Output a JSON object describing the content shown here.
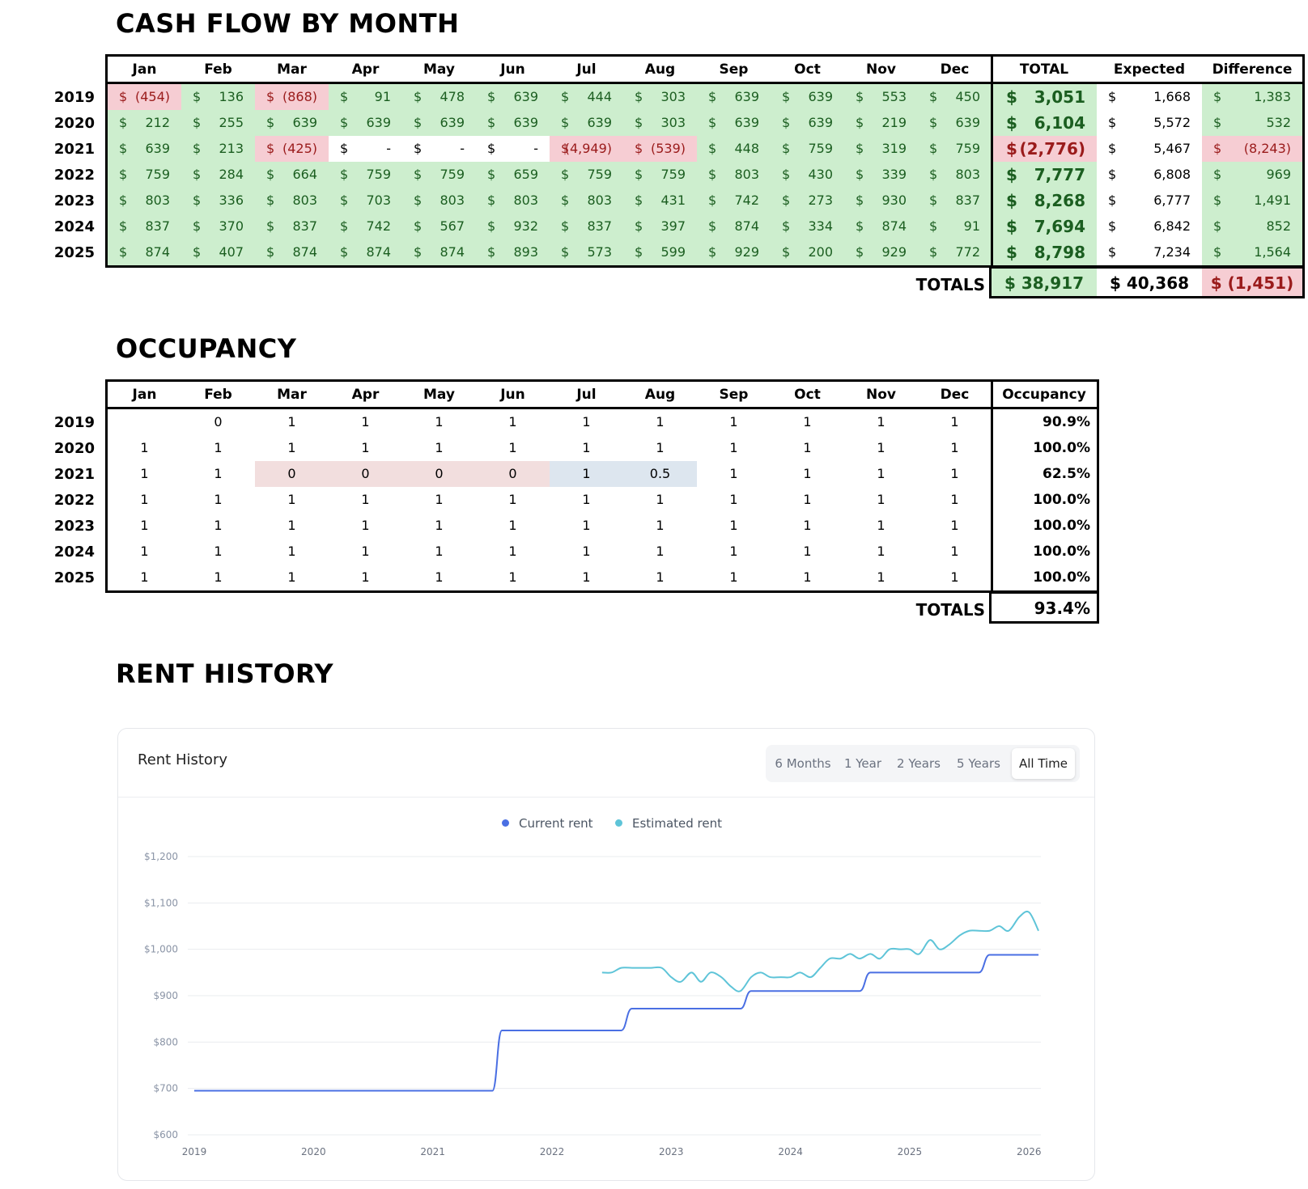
{
  "cash_flow": {
    "title": "CASH FLOW BY MONTH",
    "months": [
      "Jan",
      "Feb",
      "Mar",
      "Apr",
      "May",
      "Jun",
      "Jul",
      "Aug",
      "Sep",
      "Oct",
      "Nov",
      "Dec"
    ],
    "summary_headers": [
      "TOTAL",
      "Expected",
      "Difference"
    ],
    "rows": [
      {
        "year": "2019",
        "cells": [
          [
            "$",
            "(454)",
            "r"
          ],
          [
            "$",
            "136",
            "g"
          ],
          [
            "$",
            "(868)",
            "r"
          ],
          [
            "$",
            "91",
            "g"
          ],
          [
            "$",
            "478",
            "g"
          ],
          [
            "$",
            "639",
            "g"
          ],
          [
            "$",
            "444",
            "g"
          ],
          [
            "$",
            "303",
            "g"
          ],
          [
            "$",
            "639",
            "g"
          ],
          [
            "$",
            "639",
            "g"
          ],
          [
            "$",
            "553",
            "g"
          ],
          [
            "$",
            "450",
            "g"
          ]
        ],
        "total": [
          "$",
          "3,051",
          "g"
        ],
        "expected": [
          "$",
          "1,668"
        ],
        "difference": [
          "$",
          "1,383",
          "g"
        ]
      },
      {
        "year": "2020",
        "cells": [
          [
            "$",
            "212",
            "g"
          ],
          [
            "$",
            "255",
            "g"
          ],
          [
            "$",
            "639",
            "g"
          ],
          [
            "$",
            "639",
            "g"
          ],
          [
            "$",
            "639",
            "g"
          ],
          [
            "$",
            "639",
            "g"
          ],
          [
            "$",
            "639",
            "g"
          ],
          [
            "$",
            "303",
            "g"
          ],
          [
            "$",
            "639",
            "g"
          ],
          [
            "$",
            "639",
            "g"
          ],
          [
            "$",
            "219",
            "g"
          ],
          [
            "$",
            "639",
            "g"
          ]
        ],
        "total": [
          "$",
          "6,104",
          "g"
        ],
        "expected": [
          "$",
          "5,572"
        ],
        "difference": [
          "$",
          "532",
          "g"
        ]
      },
      {
        "year": "2021",
        "cells": [
          [
            "$",
            "639",
            "g"
          ],
          [
            "$",
            "213",
            "g"
          ],
          [
            "$",
            "(425)",
            "r"
          ],
          [
            "$",
            "-",
            "w"
          ],
          [
            "$",
            "-",
            "w"
          ],
          [
            "$",
            "-",
            "w"
          ],
          [
            "$",
            "(4,949)",
            "r"
          ],
          [
            "$",
            "(539)",
            "r"
          ],
          [
            "$",
            "448",
            "g"
          ],
          [
            "$",
            "759",
            "g"
          ],
          [
            "$",
            "319",
            "g"
          ],
          [
            "$",
            "759",
            "g"
          ]
        ],
        "total": [
          "$",
          "(2,776)",
          "r"
        ],
        "expected": [
          "$",
          "5,467"
        ],
        "difference": [
          "$",
          "(8,243)",
          "r"
        ]
      },
      {
        "year": "2022",
        "cells": [
          [
            "$",
            "759",
            "g"
          ],
          [
            "$",
            "284",
            "g"
          ],
          [
            "$",
            "664",
            "g"
          ],
          [
            "$",
            "759",
            "g"
          ],
          [
            "$",
            "759",
            "g"
          ],
          [
            "$",
            "659",
            "g"
          ],
          [
            "$",
            "759",
            "g"
          ],
          [
            "$",
            "759",
            "g"
          ],
          [
            "$",
            "803",
            "g"
          ],
          [
            "$",
            "430",
            "g"
          ],
          [
            "$",
            "339",
            "g"
          ],
          [
            "$",
            "803",
            "g"
          ]
        ],
        "total": [
          "$",
          "7,777",
          "g"
        ],
        "expected": [
          "$",
          "6,808"
        ],
        "difference": [
          "$",
          "969",
          "g"
        ]
      },
      {
        "year": "2023",
        "cells": [
          [
            "$",
            "803",
            "g"
          ],
          [
            "$",
            "336",
            "g"
          ],
          [
            "$",
            "803",
            "g"
          ],
          [
            "$",
            "703",
            "g"
          ],
          [
            "$",
            "803",
            "g"
          ],
          [
            "$",
            "803",
            "g"
          ],
          [
            "$",
            "803",
            "g"
          ],
          [
            "$",
            "431",
            "g"
          ],
          [
            "$",
            "742",
            "g"
          ],
          [
            "$",
            "273",
            "g"
          ],
          [
            "$",
            "930",
            "g"
          ],
          [
            "$",
            "837",
            "g"
          ]
        ],
        "total": [
          "$",
          "8,268",
          "g"
        ],
        "expected": [
          "$",
          "6,777"
        ],
        "difference": [
          "$",
          "1,491",
          "g"
        ]
      },
      {
        "year": "2024",
        "cells": [
          [
            "$",
            "837",
            "g"
          ],
          [
            "$",
            "370",
            "g"
          ],
          [
            "$",
            "837",
            "g"
          ],
          [
            "$",
            "742",
            "g"
          ],
          [
            "$",
            "567",
            "g"
          ],
          [
            "$",
            "932",
            "g"
          ],
          [
            "$",
            "837",
            "g"
          ],
          [
            "$",
            "397",
            "g"
          ],
          [
            "$",
            "874",
            "g"
          ],
          [
            "$",
            "334",
            "g"
          ],
          [
            "$",
            "874",
            "g"
          ],
          [
            "$",
            "91",
            "g"
          ]
        ],
        "total": [
          "$",
          "7,694",
          "g"
        ],
        "expected": [
          "$",
          "6,842"
        ],
        "difference": [
          "$",
          "852",
          "g"
        ]
      },
      {
        "year": "2025",
        "cells": [
          [
            "$",
            "874",
            "g"
          ],
          [
            "$",
            "407",
            "g"
          ],
          [
            "$",
            "874",
            "g"
          ],
          [
            "$",
            "874",
            "g"
          ],
          [
            "$",
            "874",
            "g"
          ],
          [
            "$",
            "893",
            "g"
          ],
          [
            "$",
            "573",
            "g"
          ],
          [
            "$",
            "599",
            "g"
          ],
          [
            "$",
            "929",
            "g"
          ],
          [
            "$",
            "200",
            "g"
          ],
          [
            "$",
            "929",
            "g"
          ],
          [
            "$",
            "772",
            "g"
          ]
        ],
        "total": [
          "$",
          "8,798",
          "g"
        ],
        "expected": [
          "$",
          "7,234"
        ],
        "difference": [
          "$",
          "1,564",
          "g"
        ]
      }
    ],
    "totals_label": "TOTALS",
    "totals": {
      "total": "$ 38,917",
      "expected": "$ 40,368",
      "difference": "$ (1,451)"
    }
  },
  "occupancy": {
    "title": "OCCUPANCY",
    "months": [
      "Jan",
      "Feb",
      "Mar",
      "Apr",
      "May",
      "Jun",
      "Jul",
      "Aug",
      "Sep",
      "Oct",
      "Nov",
      "Dec"
    ],
    "summary_header": "Occupancy",
    "rows": [
      {
        "year": "2019",
        "cells": [
          "",
          "0",
          "1",
          "1",
          "1",
          "1",
          "1",
          "1",
          "1",
          "1",
          "1",
          "1"
        ],
        "pct": "90.9%"
      },
      {
        "year": "2020",
        "cells": [
          "1",
          "1",
          "1",
          "1",
          "1",
          "1",
          "1",
          "1",
          "1",
          "1",
          "1",
          "1"
        ],
        "pct": "100.0%"
      },
      {
        "year": "2021",
        "cells": [
          "1",
          "1",
          "0",
          "0",
          "0",
          "0",
          "1",
          "0.5",
          "1",
          "1",
          "1",
          "1"
        ],
        "pct": "62.5%",
        "highlight": {
          "pink": [
            2,
            3,
            4,
            5
          ],
          "blue": [
            6,
            7
          ]
        }
      },
      {
        "year": "2022",
        "cells": [
          "1",
          "1",
          "1",
          "1",
          "1",
          "1",
          "1",
          "1",
          "1",
          "1",
          "1",
          "1"
        ],
        "pct": "100.0%"
      },
      {
        "year": "2023",
        "cells": [
          "1",
          "1",
          "1",
          "1",
          "1",
          "1",
          "1",
          "1",
          "1",
          "1",
          "1",
          "1"
        ],
        "pct": "100.0%"
      },
      {
        "year": "2024",
        "cells": [
          "1",
          "1",
          "1",
          "1",
          "1",
          "1",
          "1",
          "1",
          "1",
          "1",
          "1",
          "1"
        ],
        "pct": "100.0%"
      },
      {
        "year": "2025",
        "cells": [
          "1",
          "1",
          "1",
          "1",
          "1",
          "1",
          "1",
          "1",
          "1",
          "1",
          "1",
          "1"
        ],
        "pct": "100.0%"
      }
    ],
    "totals_label": "TOTALS",
    "total_pct": "93.4%"
  },
  "rent_history": {
    "title": "RENT HISTORY",
    "card_title": "Rent History",
    "ranges": [
      "6 Months",
      "1 Year",
      "2 Years",
      "5 Years",
      "All Time"
    ],
    "active_range": "All Time",
    "colors": {
      "current": "#4a6fe3",
      "estimated": "#5ec4d8",
      "grid": "#e9ecef",
      "axis_text": "#8a94a6"
    }
  },
  "chart_data": {
    "type": "line",
    "title": "Rent History",
    "xlabel": "",
    "ylabel": "",
    "x_ticks": [
      "2019",
      "2020",
      "2021",
      "2022",
      "2023",
      "2024",
      "2025",
      "2026"
    ],
    "y_ticks": [
      "$600",
      "$700",
      "$800",
      "$900",
      "$1,000",
      "$1,100",
      "$1,200"
    ],
    "ylim": [
      600,
      1200
    ],
    "xlim": [
      2019.0,
      2026.1
    ],
    "legend_position": "top-center",
    "series": [
      {
        "name": "Current rent",
        "color": "#4a6fe3",
        "step": true,
        "points": [
          [
            2019.0,
            695
          ],
          [
            2021.5,
            695
          ],
          [
            2021.58,
            825
          ],
          [
            2022.58,
            825
          ],
          [
            2022.67,
            872
          ],
          [
            2023.58,
            872
          ],
          [
            2023.67,
            910
          ],
          [
            2024.58,
            910
          ],
          [
            2024.67,
            950
          ],
          [
            2025.58,
            950
          ],
          [
            2025.67,
            988
          ],
          [
            2026.08,
            988
          ]
        ]
      },
      {
        "name": "Estimated rent",
        "color": "#5ec4d8",
        "step": false,
        "points": [
          [
            2022.42,
            950
          ],
          [
            2022.5,
            950
          ],
          [
            2022.58,
            960
          ],
          [
            2022.67,
            960
          ],
          [
            2022.75,
            960
          ],
          [
            2022.83,
            960
          ],
          [
            2022.92,
            960
          ],
          [
            2023.0,
            940
          ],
          [
            2023.08,
            930
          ],
          [
            2023.17,
            950
          ],
          [
            2023.25,
            930
          ],
          [
            2023.33,
            950
          ],
          [
            2023.42,
            940
          ],
          [
            2023.5,
            920
          ],
          [
            2023.58,
            910
          ],
          [
            2023.67,
            940
          ],
          [
            2023.75,
            950
          ],
          [
            2023.83,
            940
          ],
          [
            2023.92,
            940
          ],
          [
            2024.0,
            940
          ],
          [
            2024.08,
            950
          ],
          [
            2024.17,
            940
          ],
          [
            2024.25,
            960
          ],
          [
            2024.33,
            980
          ],
          [
            2024.42,
            980
          ],
          [
            2024.5,
            990
          ],
          [
            2024.58,
            980
          ],
          [
            2024.67,
            990
          ],
          [
            2024.75,
            980
          ],
          [
            2024.83,
            1000
          ],
          [
            2024.92,
            1000
          ],
          [
            2025.0,
            1000
          ],
          [
            2025.08,
            990
          ],
          [
            2025.17,
            1020
          ],
          [
            2025.25,
            1000
          ],
          [
            2025.33,
            1010
          ],
          [
            2025.42,
            1030
          ],
          [
            2025.5,
            1040
          ],
          [
            2025.58,
            1040
          ],
          [
            2025.67,
            1040
          ],
          [
            2025.75,
            1050
          ],
          [
            2025.83,
            1040
          ],
          [
            2025.92,
            1070
          ],
          [
            2026.0,
            1080
          ],
          [
            2026.08,
            1040
          ]
        ]
      }
    ]
  }
}
